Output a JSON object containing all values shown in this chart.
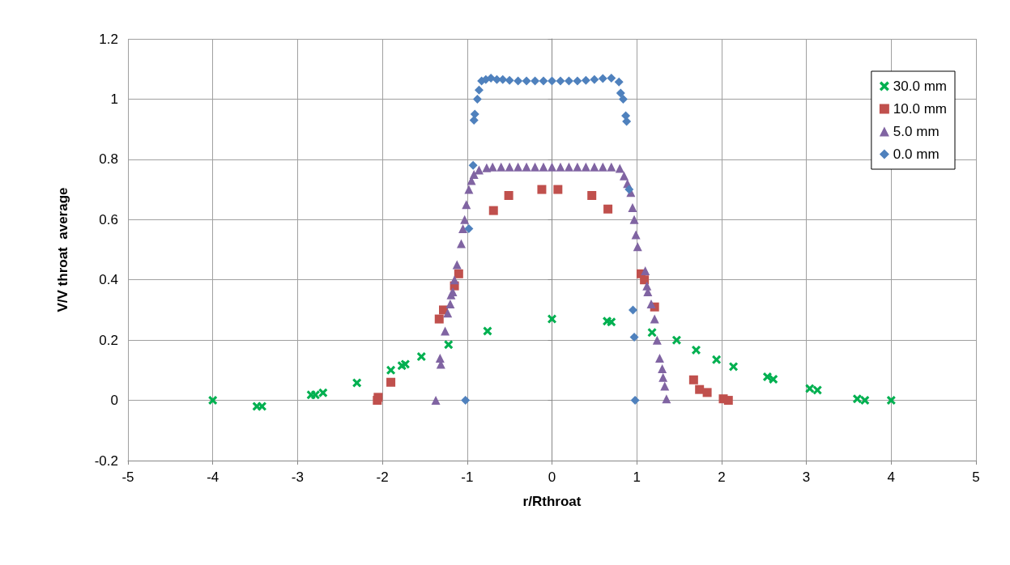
{
  "chart_data": {
    "type": "scatter",
    "xlabel": "r/Rthroat",
    "ylabel": "V/V throat  average",
    "xlim": [
      -5,
      5
    ],
    "xticks": [
      -5,
      -4,
      -3,
      -2,
      -1,
      0,
      1,
      2,
      3,
      4,
      5
    ],
    "ylim": [
      -0.2,
      1.2
    ],
    "yticks": [
      -0.2,
      0,
      0.2,
      0.4,
      0.6,
      0.8,
      1,
      1.2
    ],
    "grid": true,
    "legend": "top right",
    "series": [
      {
        "name": "30.0 mm",
        "color": "#00b050",
        "marker": "cross",
        "x": [
          -4,
          -3.48,
          -3.42,
          -2.84,
          -2.79,
          -2.7,
          -2.3,
          -1.9,
          -1.77,
          -1.73,
          -1.54,
          -1.22,
          -0.76,
          0,
          0.65,
          0.7,
          1.18,
          1.47,
          1.7,
          1.94,
          2.14,
          2.54,
          2.61,
          3.04,
          3.13,
          3.6,
          3.69,
          4
        ],
        "values": [
          0,
          -0.02,
          -0.02,
          0.018,
          0.018,
          0.025,
          0.058,
          0.1,
          0.115,
          0.12,
          0.145,
          0.185,
          0.23,
          0.27,
          0.263,
          0.26,
          0.225,
          0.2,
          0.167,
          0.135,
          0.112,
          0.078,
          0.07,
          0.039,
          0.034,
          0.005,
          0,
          0
        ]
      },
      {
        "name": "10.0 mm",
        "color": "#c0504d",
        "marker": "square",
        "x": [
          -2.06,
          -2.05,
          -1.9,
          -1.33,
          -1.28,
          -1.15,
          -1.1,
          -0.69,
          -0.51,
          -0.12,
          0.07,
          0.47,
          0.66,
          1.05,
          1.09,
          1.21,
          1.67,
          1.74,
          1.83,
          2.02,
          2.08
        ],
        "values": [
          0,
          0.01,
          0.06,
          0.27,
          0.3,
          0.38,
          0.42,
          0.63,
          0.68,
          0.7,
          0.7,
          0.68,
          0.635,
          0.42,
          0.4,
          0.31,
          0.068,
          0.036,
          0.026,
          0.005,
          0
        ]
      },
      {
        "name": "5.0 mm",
        "color": "#8064a2",
        "marker": "triangle",
        "x": [
          -1.37,
          -1.32,
          -1.31,
          -1.26,
          -1.23,
          -1.2,
          -1.19,
          -1.17,
          -1.15,
          -1.12,
          -1.07,
          -1.05,
          -1.03,
          -1.01,
          -0.98,
          -0.95,
          -0.92,
          -0.86,
          -0.77,
          -0.7,
          -0.6,
          -0.5,
          -0.4,
          -0.3,
          -0.2,
          -0.1,
          0,
          0.1,
          0.2,
          0.3,
          0.4,
          0.5,
          0.6,
          0.7,
          0.8,
          0.85,
          0.89,
          0.93,
          0.95,
          0.97,
          0.99,
          1.01,
          1.1,
          1.12,
          1.13,
          1.17,
          1.21,
          1.24,
          1.27,
          1.3,
          1.31,
          1.33,
          1.35
        ],
        "values": [
          0,
          0.14,
          0.12,
          0.23,
          0.29,
          0.32,
          0.35,
          0.36,
          0.4,
          0.45,
          0.52,
          0.57,
          0.6,
          0.65,
          0.7,
          0.73,
          0.75,
          0.765,
          0.772,
          0.775,
          0.775,
          0.775,
          0.775,
          0.775,
          0.775,
          0.775,
          0.775,
          0.775,
          0.775,
          0.775,
          0.775,
          0.775,
          0.775,
          0.775,
          0.77,
          0.745,
          0.72,
          0.69,
          0.64,
          0.6,
          0.55,
          0.51,
          0.43,
          0.38,
          0.36,
          0.32,
          0.27,
          0.2,
          0.14,
          0.105,
          0.076,
          0.047,
          0.005
        ]
      },
      {
        "name": "0.0 mm",
        "color": "#4f81bd",
        "marker": "diamond",
        "x": [
          -1.02,
          -0.98,
          -0.93,
          -0.92,
          -0.91,
          -0.88,
          -0.86,
          -0.83,
          -0.78,
          -0.72,
          -0.65,
          -0.58,
          -0.5,
          -0.4,
          -0.3,
          -0.2,
          -0.1,
          0,
          0.1,
          0.2,
          0.3,
          0.4,
          0.5,
          0.6,
          0.7,
          0.79,
          0.81,
          0.84,
          0.87,
          0.88,
          0.91,
          0.955,
          0.97,
          0.98
        ],
        "values": [
          0,
          0.57,
          0.78,
          0.93,
          0.95,
          1,
          1.03,
          1.06,
          1.065,
          1.07,
          1.065,
          1.065,
          1.062,
          1.06,
          1.06,
          1.06,
          1.06,
          1.06,
          1.06,
          1.06,
          1.06,
          1.062,
          1.065,
          1.068,
          1.07,
          1.057,
          1.02,
          1,
          0.945,
          0.926,
          0.7,
          0.3,
          0.21,
          0
        ]
      }
    ]
  }
}
